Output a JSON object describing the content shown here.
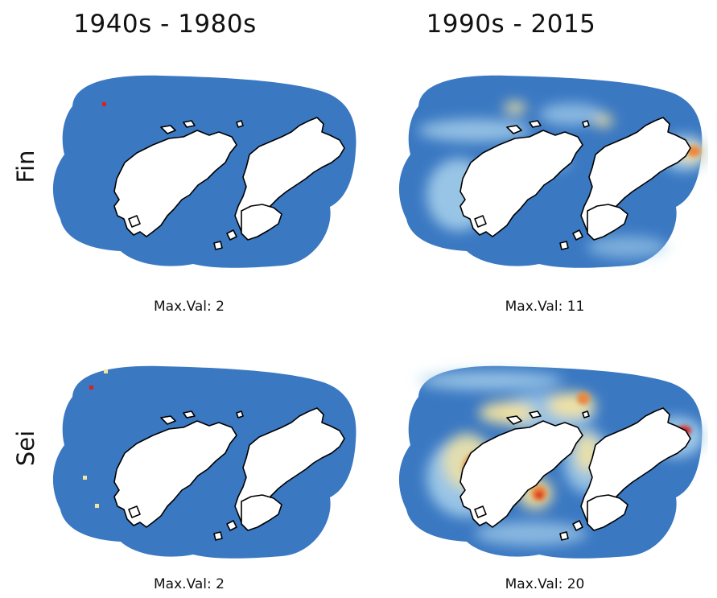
{
  "columns": [
    "1940s - 1980s",
    "1990s - 2015"
  ],
  "rows": [
    "Fin",
    "Sei"
  ],
  "panels": [
    {
      "species": "Fin",
      "period": "1940s - 1980s",
      "max_label": "Max.Val: 2"
    },
    {
      "species": "Fin",
      "period": "1990s - 2015",
      "max_label": "Max.Val: 11"
    },
    {
      "species": "Sei",
      "period": "1940s - 1980s",
      "max_label": "Max.Val: 2"
    },
    {
      "species": "Sei",
      "period": "1990s - 2015",
      "max_label": "Max.Val: 20"
    }
  ],
  "colors": {
    "buffer": "#3a78c2",
    "land": "#ffffff",
    "coast": "#000000",
    "low": "#a9d2ec",
    "mid": "#f4e3a1",
    "high": "#e8893f",
    "max": "#d8221f"
  }
}
